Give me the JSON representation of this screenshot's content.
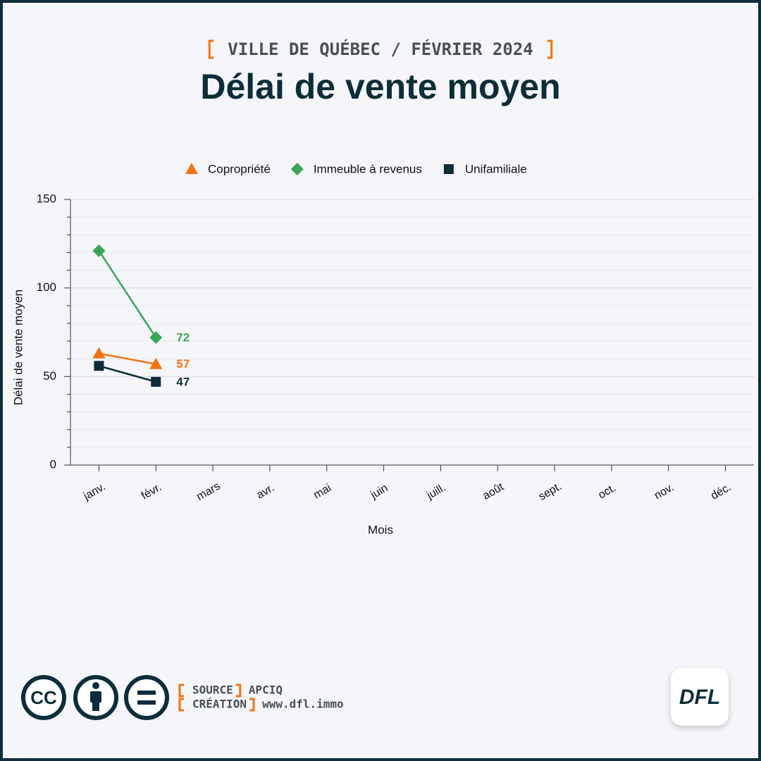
{
  "chart_data": {
    "type": "line",
    "subtitle": "VILLE DE QUÉBEC / FÉVRIER 2024",
    "title": "Délai de vente moyen",
    "x_label": "Mois",
    "y_label": "Délai de vente moyen",
    "categories": [
      "janv.",
      "févr.",
      "mars",
      "avr.",
      "mai",
      "juin",
      "juill.",
      "août",
      "sept.",
      "oct.",
      "nov.",
      "déc."
    ],
    "series": [
      {
        "name": "Copropriété",
        "color": "#f5730f",
        "marker": "triangle",
        "values": [
          63,
          57,
          null,
          null,
          null,
          null,
          null,
          null,
          null,
          null,
          null,
          null
        ]
      },
      {
        "name": "Immeuble à revenus",
        "color": "#3aa655",
        "marker": "diamond",
        "values": [
          121,
          72,
          null,
          null,
          null,
          null,
          null,
          null,
          null,
          null,
          null,
          null
        ]
      },
      {
        "name": "Unifamiliale",
        "color": "#0d2d3a",
        "marker": "square",
        "values": [
          56,
          47,
          null,
          null,
          null,
          null,
          null,
          null,
          null,
          null,
          null,
          null
        ]
      }
    ],
    "ylim": [
      0,
      150
    ],
    "yticks": [
      0,
      50,
      100,
      150
    ],
    "yticks_minor": [
      10,
      20,
      30,
      40,
      60,
      70,
      80,
      90,
      110,
      120,
      130,
      140
    ],
    "grid": true,
    "legend": "top"
  },
  "footer": {
    "license": "CC",
    "source_label": "SOURCE",
    "source": "APCIQ",
    "creation_label": "CRÉATION",
    "creation": "www.dfl.immo",
    "logo": "DFL"
  }
}
